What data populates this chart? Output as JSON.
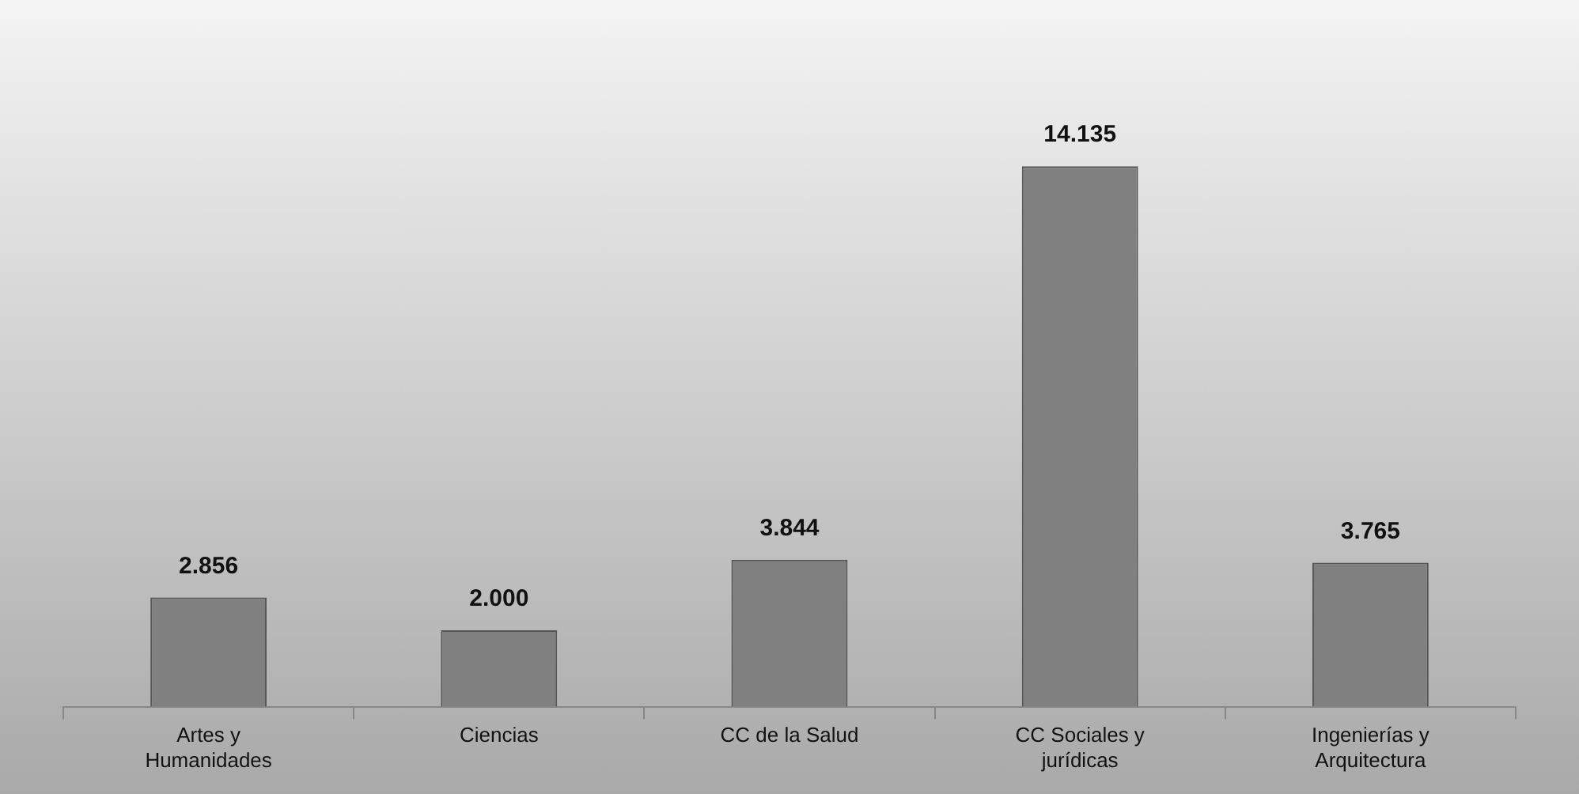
{
  "chart_data": {
    "type": "bar",
    "categories": [
      "Artes y Humanidades",
      "Ciencias",
      "CC de la Salud",
      "CC Sociales y jurídicas",
      "Ingenierías y Arquitectura"
    ],
    "values": [
      2856,
      2000,
      3844,
      14135,
      3765
    ],
    "value_labels": [
      "2.856",
      "2.000",
      "3.844",
      "14.135",
      "3.765"
    ],
    "color": "#808080"
  }
}
